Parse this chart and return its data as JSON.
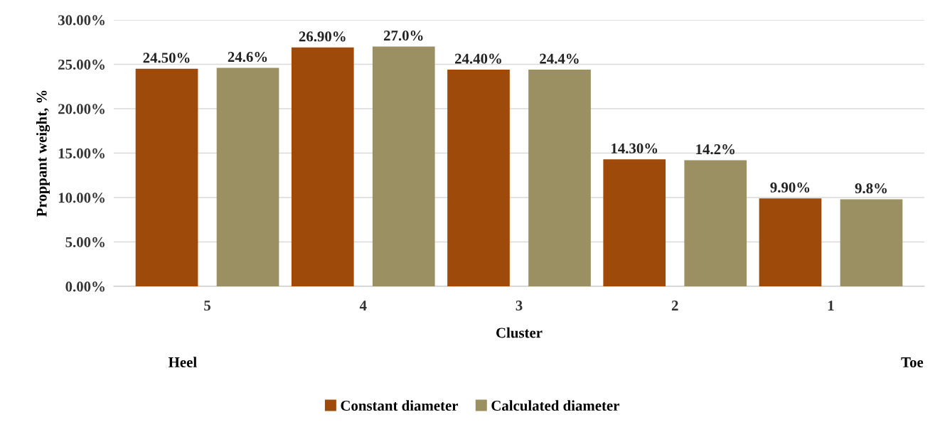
{
  "chart_data": {
    "type": "bar",
    "xlabel": "Cluster",
    "ylabel": "Proppant weight, %",
    "categories": [
      "5",
      "4",
      "3",
      "2",
      "1"
    ],
    "series": [
      {
        "name": "Constant diameter",
        "color": "#9e4a0b",
        "values": [
          24.5,
          26.9,
          24.4,
          14.3,
          9.9
        ],
        "value_labels": [
          "24.50%",
          "26.90%",
          "24.40%",
          "14.30%",
          "9.90%"
        ]
      },
      {
        "name": "Calculated diameter",
        "color": "#9b9062",
        "values": [
          24.6,
          27.0,
          24.4,
          14.2,
          9.8
        ],
        "value_labels": [
          "24.6%",
          "27.0%",
          "24.4%",
          "14.2%",
          "9.8%"
        ]
      }
    ],
    "ylim": [
      0,
      30
    ],
    "yticks": [
      {
        "value": 0,
        "label": "0.00%"
      },
      {
        "value": 5,
        "label": "5.00%"
      },
      {
        "value": 10,
        "label": "10.00%"
      },
      {
        "value": 15,
        "label": "15.00%"
      },
      {
        "value": 20,
        "label": "20.00%"
      },
      {
        "value": 25,
        "label": "25.00%"
      },
      {
        "value": 30,
        "label": "30.00%"
      }
    ],
    "grid": "y",
    "legend": "bottom",
    "annotations": [
      "Heel",
      "Toe"
    ]
  }
}
